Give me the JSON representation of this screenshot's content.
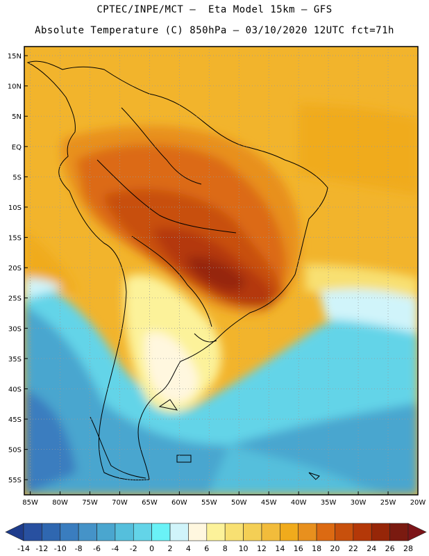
{
  "header": {
    "line1": "CPTEC/INPE/MCT –  Eta Model 15km – GFS",
    "line2": "Absolute Temperature (C) 850hPa – 03/10/2020 12UTC fct=71h"
  },
  "map": {
    "lat_labels": [
      "15N",
      "10N",
      "5N",
      "EQ",
      "5S",
      "10S",
      "15S",
      "20S",
      "25S",
      "30S",
      "35S",
      "40S",
      "45S",
      "50S",
      "55S"
    ],
    "lat_values": [
      15,
      10,
      5,
      0,
      -5,
      -10,
      -15,
      -20,
      -25,
      -30,
      -35,
      -40,
      -45,
      -50,
      -55
    ],
    "lon_labels": [
      "85W",
      "80W",
      "75W",
      "70W",
      "65W",
      "60W",
      "55W",
      "50W",
      "45W",
      "40W",
      "35W",
      "30W",
      "25W",
      "20W"
    ],
    "lon_values": [
      -85,
      -80,
      -75,
      -70,
      -65,
      -60,
      -55,
      -50,
      -45,
      -40,
      -35,
      -30,
      -25,
      -20
    ],
    "lat_range": [
      -57.5,
      16.5
    ],
    "lon_range": [
      -86,
      -20
    ],
    "grid": "dotted"
  },
  "colorbar": {
    "labels": [
      "-14",
      "-12",
      "-10",
      "-8",
      "-6",
      "-4",
      "-2",
      "0",
      "2",
      "4",
      "6",
      "8",
      "10",
      "12",
      "14",
      "16",
      "18",
      "20",
      "22",
      "24",
      "26",
      "28"
    ],
    "colors": [
      "#1e3c8c",
      "#2850a0",
      "#2f67b0",
      "#3a7dbf",
      "#4593c8",
      "#4aa6cf",
      "#55bfdc",
      "#63d4e8",
      "#6af2f7",
      "#d0f4fa",
      "#fff7df",
      "#fcf29a",
      "#f8e072",
      "#f4cf55",
      "#f2bc3b",
      "#f0ab1c",
      "#e8901e",
      "#dc6a12",
      "#c8500c",
      "#b43808",
      "#962608",
      "#7a1a10",
      "#7c1418"
    ]
  }
}
